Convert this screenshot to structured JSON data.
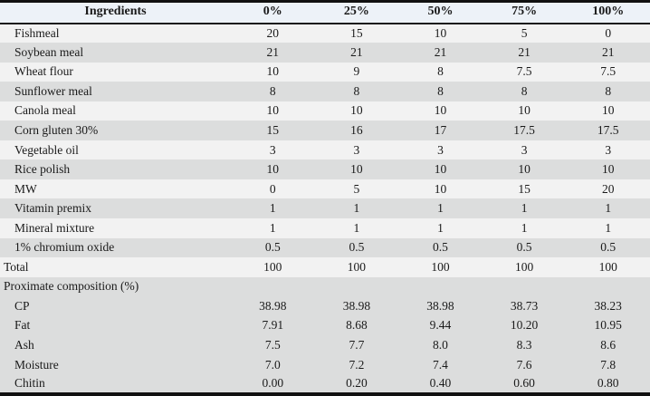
{
  "table": {
    "title": "ingredients-and-proximate-composition",
    "columns": [
      "Ingredients",
      "0%",
      "25%",
      "50%",
      "75%",
      "100%"
    ],
    "rows": [
      {
        "label": "Fishmeal",
        "values": [
          "20",
          "15",
          "10",
          "5",
          "0"
        ],
        "shade": "light",
        "indent": true
      },
      {
        "label": "Soybean meal",
        "values": [
          "21",
          "21",
          "21",
          "21",
          "21"
        ],
        "shade": "gray",
        "indent": true
      },
      {
        "label": "Wheat flour",
        "values": [
          "10",
          "9",
          "8",
          "7.5",
          "7.5"
        ],
        "shade": "light",
        "indent": true
      },
      {
        "label": "Sunflower meal",
        "values": [
          "8",
          "8",
          "8",
          "8",
          "8"
        ],
        "shade": "gray",
        "indent": true
      },
      {
        "label": "Canola meal",
        "values": [
          "10",
          "10",
          "10",
          "10",
          "10"
        ],
        "shade": "light",
        "indent": true
      },
      {
        "label": "Corn gluten 30%",
        "values": [
          "15",
          "16",
          "17",
          "17.5",
          "17.5"
        ],
        "shade": "gray",
        "indent": true
      },
      {
        "label": "Vegetable oil",
        "values": [
          "3",
          "3",
          "3",
          "3",
          "3"
        ],
        "shade": "light",
        "indent": true
      },
      {
        "label": "Rice polish",
        "values": [
          "10",
          "10",
          "10",
          "10",
          "10"
        ],
        "shade": "gray",
        "indent": true
      },
      {
        "label": "MW",
        "values": [
          "0",
          "5",
          "10",
          "15",
          "20"
        ],
        "shade": "light",
        "indent": true
      },
      {
        "label": "Vitamin premix",
        "values": [
          "1",
          "1",
          "1",
          "1",
          "1"
        ],
        "shade": "gray",
        "indent": true
      },
      {
        "label": "Mineral mixture",
        "values": [
          "1",
          "1",
          "1",
          "1",
          "1"
        ],
        "shade": "light",
        "indent": true
      },
      {
        "label": "1% chromium oxide",
        "values": [
          "0.5",
          "0.5",
          "0.5",
          "0.5",
          "0.5"
        ],
        "shade": "gray",
        "indent": true
      },
      {
        "label": "Total",
        "values": [
          "100",
          "100",
          "100",
          "100",
          "100"
        ],
        "shade": "light",
        "indent": false
      },
      {
        "label": "Proximate composition (%)",
        "values": [
          "",
          "",
          "",
          "",
          ""
        ],
        "shade": "gray",
        "indent": false
      },
      {
        "label": "CP",
        "values": [
          "38.98",
          "38.98",
          "38.98",
          "38.73",
          "38.23"
        ],
        "shade": "gray",
        "indent": true
      },
      {
        "label": "Fat",
        "values": [
          "7.91",
          "8.68",
          "9.44",
          "10.20",
          "10.95"
        ],
        "shade": "gray",
        "indent": true
      },
      {
        "label": "Ash",
        "values": [
          "7.5",
          "7.7",
          "8.0",
          "8.3",
          "8.6"
        ],
        "shade": "gray",
        "indent": true
      },
      {
        "label": "Moisture",
        "values": [
          "7.0",
          "7.2",
          "7.4",
          "7.6",
          "7.8"
        ],
        "shade": "gray",
        "indent": true
      },
      {
        "label": "Chitin",
        "values": [
          "0.00",
          "0.20",
          "0.40",
          "0.60",
          "0.80"
        ],
        "shade": "gray",
        "indent": true
      }
    ],
    "colors": {
      "header_bg": "#edf2f8",
      "row_light_bg": "#f2f2f2",
      "row_gray_bg": "#dcdddd",
      "border": "#111111",
      "text": "#1a1a1a"
    }
  }
}
